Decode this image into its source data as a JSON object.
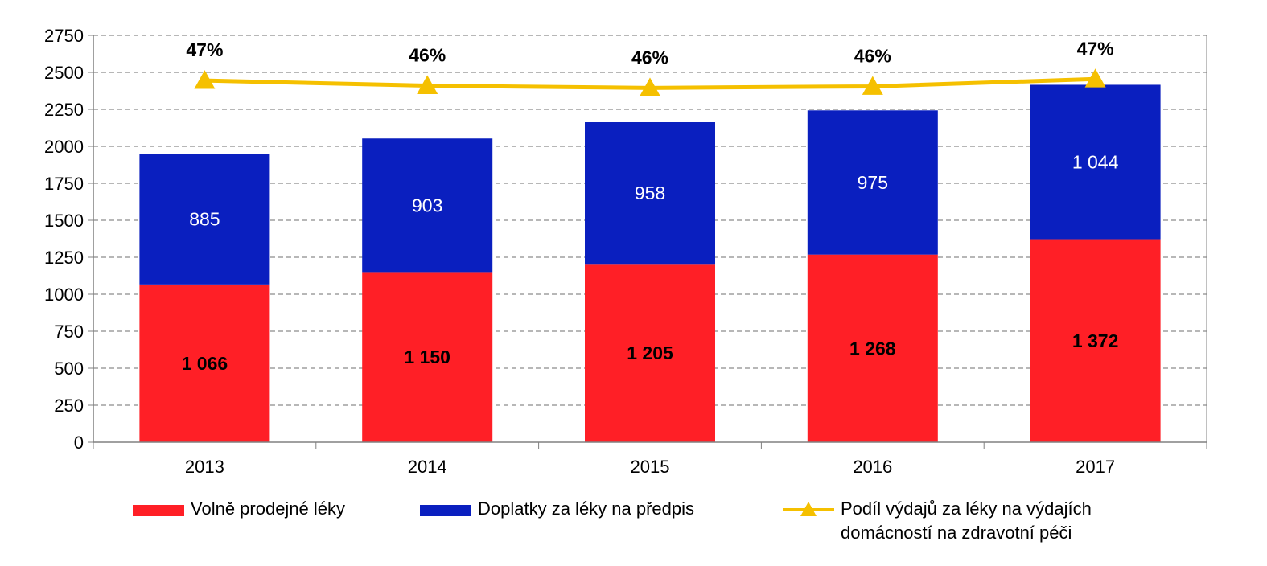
{
  "chart_data": {
    "type": "bar",
    "stacked": true,
    "categories": [
      "2013",
      "2014",
      "2015",
      "2016",
      "2017"
    ],
    "series": [
      {
        "name": "Volně prodejné léky",
        "values": [
          1066,
          1150,
          1205,
          1268,
          1372
        ],
        "labels": [
          "1 066",
          "1 150",
          "1 205",
          "1 268",
          "1 372"
        ],
        "color": "#ff1f26"
      },
      {
        "name": "Doplatky za léky na předpis",
        "values": [
          885,
          903,
          958,
          975,
          1044
        ],
        "labels": [
          "885",
          "903",
          "958",
          "975",
          "1 044"
        ],
        "color": "#0a1fbf"
      }
    ],
    "line_series": {
      "name_lines": [
        "Podíl výdajů za léky na výdajích",
        "domácností na zdravotní péči"
      ],
      "values": [
        47,
        46,
        46,
        46,
        47
      ],
      "labels": [
        "47%",
        "46%",
        "46%",
        "46%",
        "47%"
      ],
      "plotted_y": [
        2445,
        2410,
        2395,
        2405,
        2455
      ],
      "color": "#f5c000"
    },
    "yticks": [
      0,
      250,
      500,
      750,
      1000,
      1250,
      1500,
      1750,
      2000,
      2250,
      2500,
      2750
    ],
    "ylim": [
      0,
      2750
    ],
    "grid": true,
    "legend_position": "bottom"
  }
}
